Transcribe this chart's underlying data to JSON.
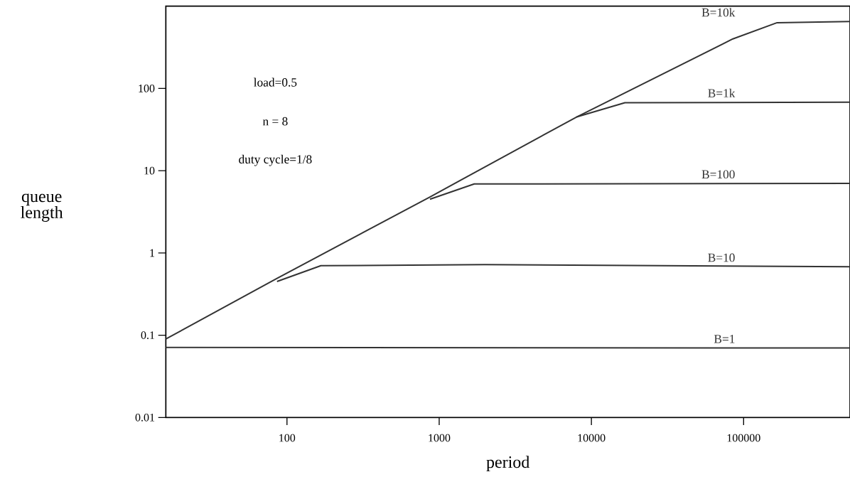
{
  "chart_data": {
    "type": "line",
    "xlabel": "period",
    "ylabel": "queue length",
    "log": "xy",
    "xlim": [
      16,
      500000
    ],
    "ylim": [
      0.01,
      1000
    ],
    "xticks": [
      100,
      1000,
      10000,
      100000
    ],
    "yticks": [
      0.01,
      0.1,
      1,
      10,
      100
    ],
    "grid": false,
    "legend": false,
    "marker": "none",
    "line_style": "solid",
    "annotations": [
      "load=0.5",
      "n = 8",
      "duty cycle=1/8"
    ],
    "series": [
      {
        "name": "B=10k",
        "color": "#333333",
        "x": [
          16,
          86,
          870,
          8000,
          85000,
          166000,
          500000
        ],
        "values": [
          0.09,
          0.49,
          4.8,
          45,
          400,
          630,
          650
        ]
      },
      {
        "name": "B=1k",
        "color": "#333333",
        "x": [
          8000,
          16600,
          500000
        ],
        "values": [
          45,
          67,
          68
        ]
      },
      {
        "name": "B=100",
        "color": "#333333",
        "x": [
          870,
          1700,
          500000
        ],
        "values": [
          4.5,
          6.9,
          7
        ]
      },
      {
        "name": "B=10",
        "color": "#333333",
        "x": [
          86,
          167,
          2000,
          500000
        ],
        "values": [
          0.45,
          0.7,
          0.72,
          0.68
        ]
      },
      {
        "name": "B=1",
        "color": "#333333",
        "x": [
          16,
          500000
        ],
        "values": [
          0.071,
          0.07
        ]
      }
    ]
  }
}
